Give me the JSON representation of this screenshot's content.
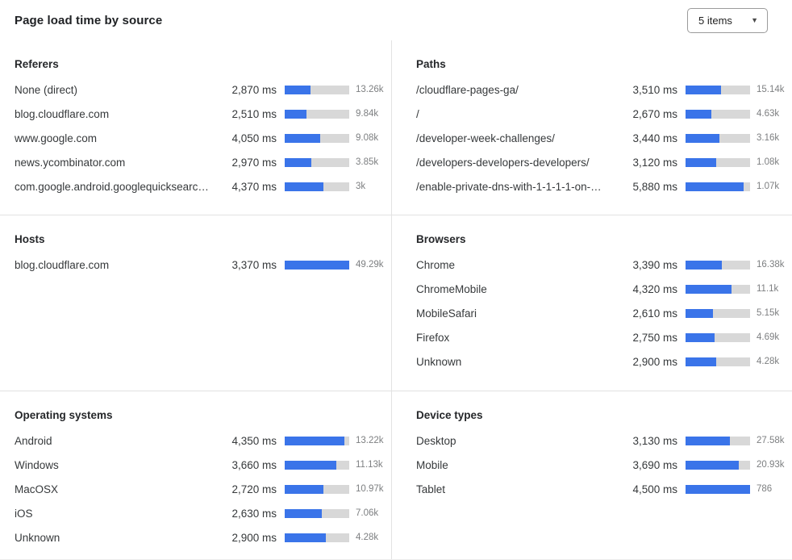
{
  "header": {
    "title": "Page load time by source",
    "items_dropdown": {
      "label": "5 items"
    }
  },
  "colors": {
    "bar_fill": "#3A74E9",
    "bar_track": "#D8D8D8",
    "divider": "#E2E2E2",
    "count_text": "#7D7F81",
    "label_text": "#36393B"
  },
  "panels": [
    {
      "title": "Referers",
      "rows": [
        {
          "label": "None (direct)",
          "value": "2,870 ms",
          "bar_pct": 40,
          "count": "13.26k"
        },
        {
          "label": "blog.cloudflare.com",
          "value": "2,510 ms",
          "bar_pct": 34,
          "count": "9.84k"
        },
        {
          "label": "www.google.com",
          "value": "4,050 ms",
          "bar_pct": 55,
          "count": "9.08k"
        },
        {
          "label": "news.ycombinator.com",
          "value": "2,970 ms",
          "bar_pct": 41,
          "count": "3.85k"
        },
        {
          "label": "com.google.android.googlequicksearc…",
          "value": "4,370 ms",
          "bar_pct": 60,
          "count": "3k"
        }
      ]
    },
    {
      "title": "Paths",
      "rows": [
        {
          "label": "/cloudflare-pages-ga/",
          "value": "3,510 ms",
          "bar_pct": 55,
          "count": "15.14k"
        },
        {
          "label": "/",
          "value": "2,670 ms",
          "bar_pct": 40,
          "count": "4.63k"
        },
        {
          "label": "/developer-week-challenges/",
          "value": "3,440 ms",
          "bar_pct": 53,
          "count": "3.16k"
        },
        {
          "label": "/developers-developers-developers/",
          "value": "3,120 ms",
          "bar_pct": 47,
          "count": "1.08k"
        },
        {
          "label": "/enable-private-dns-with-1-1-1-1-on-…",
          "value": "5,880 ms",
          "bar_pct": 90,
          "count": "1.07k"
        }
      ]
    },
    {
      "title": "Hosts",
      "rows": [
        {
          "label": "blog.cloudflare.com",
          "value": "3,370 ms",
          "bar_pct": 100,
          "count": "49.29k"
        }
      ]
    },
    {
      "title": "Browsers",
      "rows": [
        {
          "label": "Chrome",
          "value": "3,390 ms",
          "bar_pct": 56,
          "count": "16.38k"
        },
        {
          "label": "ChromeMobile",
          "value": "4,320 ms",
          "bar_pct": 71,
          "count": "11.1k"
        },
        {
          "label": "MobileSafari",
          "value": "2,610 ms",
          "bar_pct": 42,
          "count": "5.15k"
        },
        {
          "label": "Firefox",
          "value": "2,750 ms",
          "bar_pct": 45,
          "count": "4.69k"
        },
        {
          "label": "Unknown",
          "value": "2,900 ms",
          "bar_pct": 47,
          "count": "4.28k"
        }
      ]
    },
    {
      "title": "Operating systems",
      "rows": [
        {
          "label": "Android",
          "value": "4,350 ms",
          "bar_pct": 93,
          "count": "13.22k"
        },
        {
          "label": "Windows",
          "value": "3,660 ms",
          "bar_pct": 80,
          "count": "11.13k"
        },
        {
          "label": "MacOSX",
          "value": "2,720 ms",
          "bar_pct": 60,
          "count": "10.97k"
        },
        {
          "label": "iOS",
          "value": "2,630 ms",
          "bar_pct": 57,
          "count": "7.06k"
        },
        {
          "label": "Unknown",
          "value": "2,900 ms",
          "bar_pct": 64,
          "count": "4.28k"
        }
      ]
    },
    {
      "title": "Device types",
      "rows": [
        {
          "label": "Desktop",
          "value": "3,130 ms",
          "bar_pct": 69,
          "count": "27.58k"
        },
        {
          "label": "Mobile",
          "value": "3,690 ms",
          "bar_pct": 82,
          "count": "20.93k"
        },
        {
          "label": "Tablet",
          "value": "4,500 ms",
          "bar_pct": 100,
          "count": "786"
        }
      ]
    }
  ]
}
